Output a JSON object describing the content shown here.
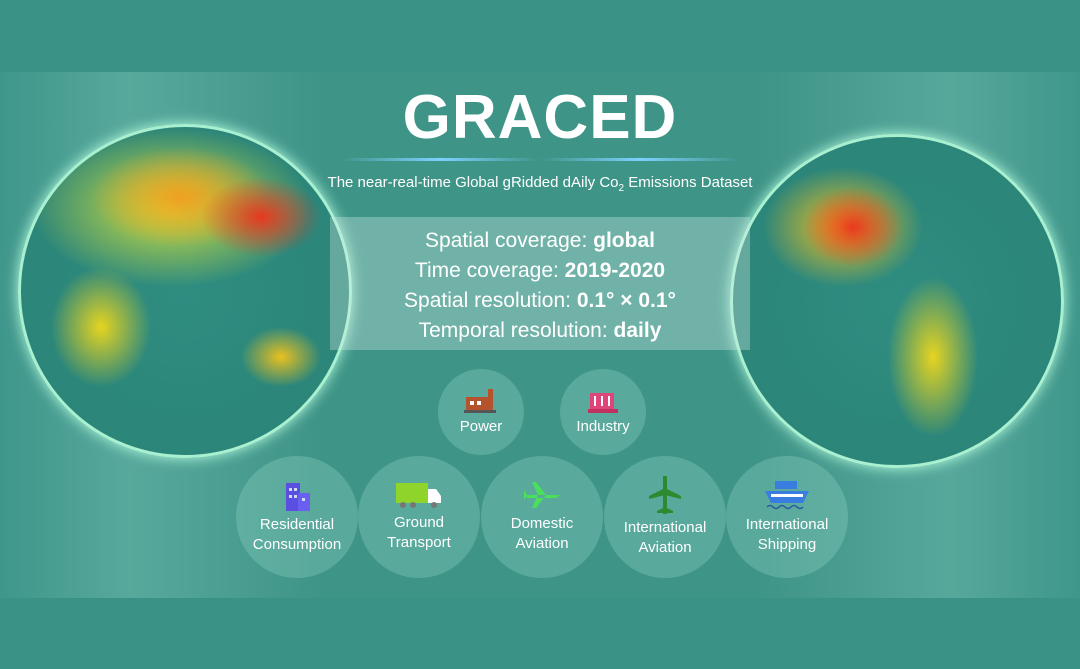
{
  "title": "GRACED",
  "subtitle": {
    "main": "The near-real-time Global gRidded dAily Co",
    "sub": "2",
    "end": " Emissions Dataset"
  },
  "info": [
    {
      "label": "Spatial coverage: ",
      "value": "global"
    },
    {
      "label": "Time coverage: ",
      "value": "2019-2020"
    },
    {
      "label": "Spatial resolution: ",
      "value": "0.1° × 0.1°"
    },
    {
      "label": "Temporal resolution: ",
      "value": "daily"
    }
  ],
  "sectors": [
    {
      "label": "Power",
      "icon": "power-plant-icon",
      "color": "#b5532c"
    },
    {
      "label": "Industry",
      "icon": "factory-icon",
      "color": "#e0457a"
    },
    {
      "label1": "Residential",
      "label2": "Consumption",
      "icon": "buildings-icon",
      "color": "#5a4fe0"
    },
    {
      "label1": "Ground",
      "label2": "Transport",
      "icon": "truck-icon",
      "color": "#8fd42a"
    },
    {
      "label1": "Domestic",
      "label2": "Aviation",
      "icon": "airplane-icon",
      "color": "#4be05a"
    },
    {
      "label1": "International",
      "label2": "Aviation",
      "icon": "airplane-icon",
      "color": "#2e8a2e"
    },
    {
      "label1": "International",
      "label2": "Shipping",
      "icon": "ship-icon",
      "color": "#3a7de0"
    }
  ]
}
